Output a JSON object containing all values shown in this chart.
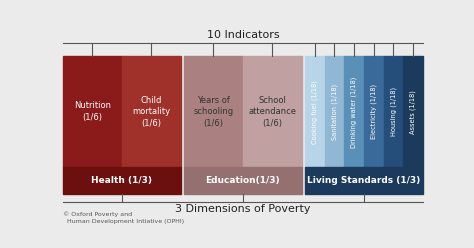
{
  "title_top": "10 Indicators",
  "title_bottom": "3 Dimensions of Poverty",
  "credit": "© Oxford Poverty and\n  Human Development Intiative (OPHI)",
  "health_color_left": "#8B1A1A",
  "health_color_right": "#A0302A",
  "health_label_color": "#6B0F0F",
  "health_label": "Health (1/3)",
  "edu_color_left": "#AA8080",
  "edu_color_right": "#C0A0A0",
  "edu_label_color": "#957070",
  "edu_label": "Education(1/3)",
  "living_label": "Living Standards (1/3)",
  "living_label_color": "#1B3A5C",
  "living_indicators": [
    {
      "label": "Cooking fuel (1/18)",
      "color": "#B8D4E8"
    },
    {
      "label": "Sanitation (1/18)",
      "color": "#90B8D4"
    },
    {
      "label": "Drinking water (1/18)",
      "color": "#5A90B8"
    },
    {
      "label": "Electricity (1/18)",
      "color": "#3A6A9A"
    },
    {
      "label": "Housing (1/18)",
      "color": "#254F7A"
    },
    {
      "label": "Assets (1/18)",
      "color": "#1B3A5C"
    }
  ],
  "health_indicators": [
    {
      "label": "Nutrition\n(1/6)"
    },
    {
      "label": "Child\nmortality\n(1/6)"
    }
  ],
  "edu_indicators": [
    {
      "label": "Years of\nschooling\n(1/6)"
    },
    {
      "label": "School\nattendance\n(1/6)"
    }
  ],
  "bg_color": "#EBEBEB",
  "bracket_color": "#555555"
}
